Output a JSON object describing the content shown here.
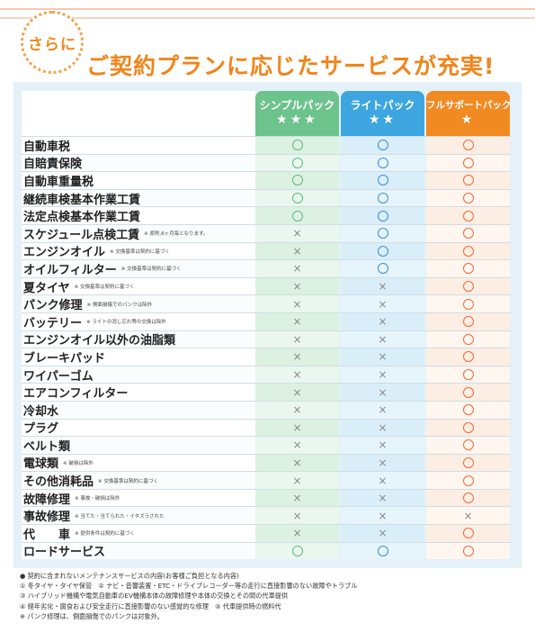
{
  "header": {
    "badge": "さらに",
    "headline": "ご契約プランに応じたサービスが充実!"
  },
  "plans": [
    {
      "name": "シンプルパック",
      "stars": "★★★"
    },
    {
      "name": "ライトパック",
      "stars": "★★"
    },
    {
      "name": "フルサポートパック",
      "stars": "★"
    }
  ],
  "rows": [
    {
      "name": "自動車税",
      "note": "",
      "s": "○",
      "l": "○",
      "f": "○"
    },
    {
      "name": "自賠責保険",
      "note": "",
      "s": "○",
      "l": "○",
      "f": "○"
    },
    {
      "name": "自動車重量税",
      "note": "",
      "s": "○",
      "l": "○",
      "f": "○"
    },
    {
      "name": "継続車検基本作業工賃",
      "note": "",
      "s": "○",
      "l": "○",
      "f": "○"
    },
    {
      "name": "法定点検基本作業工賃",
      "note": "",
      "s": "○",
      "l": "○",
      "f": "○"
    },
    {
      "name": "スケジュール点検工賃",
      "note": "※ 原則,6ヶ月毎となります。",
      "s": "×",
      "l": "○",
      "f": "○"
    },
    {
      "name": "エンジンオイル",
      "note": "※ 交換基準は契約に基づく",
      "s": "×",
      "l": "○",
      "f": "○"
    },
    {
      "name": "オイルフィルター",
      "note": "※ 交換基準は契約に基づく",
      "s": "×",
      "l": "○",
      "f": "○"
    },
    {
      "name": "夏タイヤ",
      "note": "※ 交換基準は契約に基づく",
      "s": "×",
      "l": "×",
      "f": "○"
    },
    {
      "name": "パンク修理",
      "note": "※ 側面損傷でのパンクは除外",
      "s": "×",
      "l": "×",
      "f": "○"
    },
    {
      "name": "バッテリー",
      "note": "※ ライトの消し忘れ等の交換は除外",
      "s": "×",
      "l": "×",
      "f": "○"
    },
    {
      "name": "エンジンオイル以外の油脂類",
      "note": "",
      "s": "×",
      "l": "×",
      "f": "○"
    },
    {
      "name": "ブレーキパッド",
      "note": "",
      "s": "×",
      "l": "×",
      "f": "○"
    },
    {
      "name": "ワイパーゴム",
      "note": "",
      "s": "×",
      "l": "×",
      "f": "○"
    },
    {
      "name": "エアコンフィルター",
      "note": "",
      "s": "×",
      "l": "×",
      "f": "○"
    },
    {
      "name": "冷却水",
      "note": "",
      "s": "×",
      "l": "×",
      "f": "○"
    },
    {
      "name": "プラグ",
      "note": "",
      "s": "×",
      "l": "×",
      "f": "○"
    },
    {
      "name": "ベルト類",
      "note": "",
      "s": "×",
      "l": "×",
      "f": "○"
    },
    {
      "name": "電球類",
      "note": "※ 破損は除外",
      "s": "×",
      "l": "×",
      "f": "○"
    },
    {
      "name": "その他消耗品",
      "note": "※ 交換基準は契約に基づく",
      "s": "×",
      "l": "×",
      "f": "○"
    },
    {
      "name": "故障修理",
      "note": "※ 事故・破損は除外",
      "s": "×",
      "l": "×",
      "f": "○"
    },
    {
      "name": "事故修理",
      "note": "※ 当てた・当てられた・イタズラされた",
      "s": "×",
      "l": "×",
      "f": "×"
    },
    {
      "name": "代　　車",
      "note": "※ 提供条件は契約に基づく",
      "s": "×",
      "l": "×",
      "f": "○"
    },
    {
      "name": "ロードサービス",
      "note": "",
      "s": "○",
      "l": "○",
      "f": "○"
    }
  ],
  "notes": [
    "● 契約に含まれないメンテナンスサービスの内容(お客様ご負担となる内容)",
    "① 冬タイヤ・タイヤ保管　② ナビ・音響装置・ETC・ドライブレコーダー等の走行に直接影響のない故障やトラブル",
    "③ ハイブリッド機構や電気自動車のEV機構本体の故障修理や本体の交換とその間の代車提供",
    "④ 経年劣化・腐食および安全走行に直接影響のない感覚的な修理　⑤ 代車提供時の燃料代",
    "※ パンク修理は、側面損傷でのパンクは対象外。"
  ],
  "colors": {
    "simple": "#6cc38c",
    "light": "#3da6e0",
    "full": "#f28a22",
    "headline": "#f0851b"
  }
}
